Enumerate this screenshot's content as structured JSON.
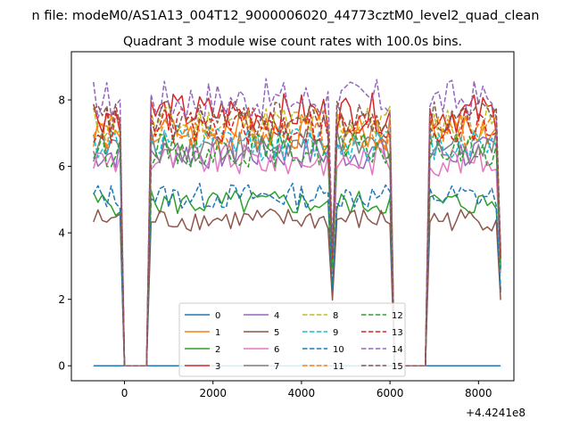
{
  "chart_data": {
    "type": "line",
    "suptitle": "n file: modeM0/AS1A13_004T12_9000006020_44773cztM0_level2_quad_clean",
    "title": "Quadrant 3 module wise count rates with 100.0s bins.",
    "xlabel": "",
    "ylabel": "",
    "x_offset_label": "+4.4241e8",
    "xlim": [
      -1200,
      8800
    ],
    "ylim": [
      -0.45,
      9.45
    ],
    "xticks": [
      0,
      2000,
      4000,
      6000,
      8000
    ],
    "xtick_labels": [
      "0",
      "2000",
      "4000",
      "6000",
      "8000"
    ],
    "yticks": [
      0,
      2,
      4,
      6,
      8
    ],
    "ytick_labels": [
      "0",
      "2",
      "4",
      "6",
      "8"
    ],
    "grid": false,
    "legend": {
      "placement": "lower-center",
      "ncol": 4
    },
    "segments": [
      {
        "x_start": -700,
        "x_end": -100,
        "step": 100
      },
      {
        "x_start": 600,
        "x_end": 4700,
        "step": 100
      },
      {
        "x_start": 4800,
        "x_end": 6000,
        "step": 100
      },
      {
        "x_start": 6900,
        "x_end": 8400,
        "step": 100
      }
    ],
    "gap_points_x": [
      0,
      500,
      6100,
      6800,
      8500
    ],
    "series": [
      {
        "name": "0",
        "color": "#1f77b4",
        "dash": "solid",
        "level": 0.0,
        "flat": true
      },
      {
        "name": "1",
        "color": "#ff7f0e",
        "dash": "solid",
        "level": 7.1
      },
      {
        "name": "2",
        "color": "#2ca02c",
        "dash": "solid",
        "level": 4.9
      },
      {
        "name": "3",
        "color": "#d62728",
        "dash": "solid",
        "level": 7.6
      },
      {
        "name": "4",
        "color": "#9467bd",
        "dash": "solid",
        "level": 6.4
      },
      {
        "name": "5",
        "color": "#8c564b",
        "dash": "solid",
        "level": 4.4
      },
      {
        "name": "6",
        "color": "#e377c2",
        "dash": "solid",
        "level": 6.2
      },
      {
        "name": "7",
        "color": "#7f7f7f",
        "dash": "solid",
        "level": 6.6
      },
      {
        "name": "8",
        "color": "#bcbd22",
        "dash": "dashed",
        "level": 7.3
      },
      {
        "name": "9",
        "color": "#17becf",
        "dash": "dashed",
        "level": 6.7
      },
      {
        "name": "10",
        "color": "#1f77b4",
        "dash": "dashed",
        "level": 5.1
      },
      {
        "name": "11",
        "color": "#ff7f0e",
        "dash": "dashed",
        "level": 7.0
      },
      {
        "name": "12",
        "color": "#2ca02c",
        "dash": "dashed",
        "level": 6.5
      },
      {
        "name": "13",
        "color": "#d62728",
        "dash": "dashed",
        "level": 7.2
      },
      {
        "name": "14",
        "color": "#9467bd",
        "dash": "dashed",
        "level": 8.0
      },
      {
        "name": "15",
        "color": "#8c564b",
        "dash": "dashed",
        "level": 7.4
      }
    ]
  }
}
